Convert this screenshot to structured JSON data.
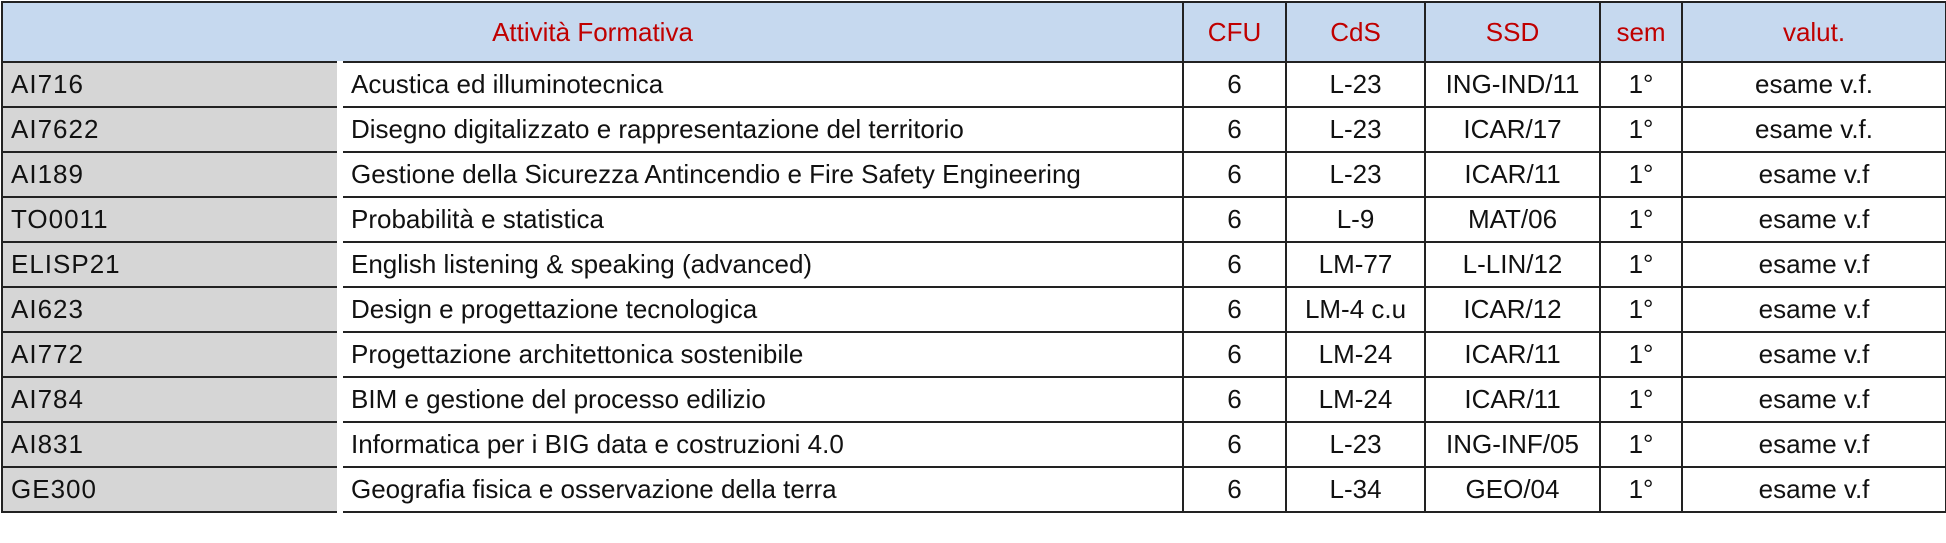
{
  "table": {
    "header": [
      "Attività Formativa",
      "CFU",
      "CdS",
      "SSD",
      "sem",
      "valut."
    ],
    "rows": [
      [
        "AI716",
        "Acustica ed illuminotecnica",
        "6",
        "L-23",
        "ING-IND/11",
        "1°",
        "esame v.f."
      ],
      [
        "AI7622",
        "Disegno digitalizzato e rappresentazione del territorio",
        "6",
        "L-23",
        "ICAR/17",
        "1°",
        "esame v.f."
      ],
      [
        "AI189",
        "Gestione della Sicurezza Antincendio e Fire Safety Engineering",
        "6",
        "L-23",
        "ICAR/11",
        "1°",
        "esame v.f"
      ],
      [
        "TO0011",
        "Probabilità e statistica",
        "6",
        "L-9",
        "MAT/06",
        "1°",
        "esame v.f"
      ],
      [
        "ELISP21",
        "English listening & speaking (advanced)",
        "6",
        "LM-77",
        "L-LIN/12",
        "1°",
        "esame v.f"
      ],
      [
        "AI623",
        "Design e progettazione tecnologica",
        "6",
        "LM-4 c.u",
        "ICAR/12",
        "1°",
        "esame v.f"
      ],
      [
        "AI772",
        "Progettazione architettonica sostenibile",
        "6",
        "LM-24",
        "ICAR/11",
        "1°",
        "esame v.f"
      ],
      [
        "AI784",
        "BIM e gestione del processo edilizio",
        "6",
        "LM-24",
        "ICAR/11",
        "1°",
        "esame v.f"
      ],
      [
        "AI831",
        "Informatica per i BIG data e costruzioni 4.0",
        "6",
        "L-23",
        "ING-INF/05",
        "1°",
        "esame v.f"
      ],
      [
        "GE300",
        "Geografia fisica e osservazione della terra",
        "6",
        "L-34",
        "GEO/04",
        "1°",
        "esame v.f"
      ]
    ]
  }
}
